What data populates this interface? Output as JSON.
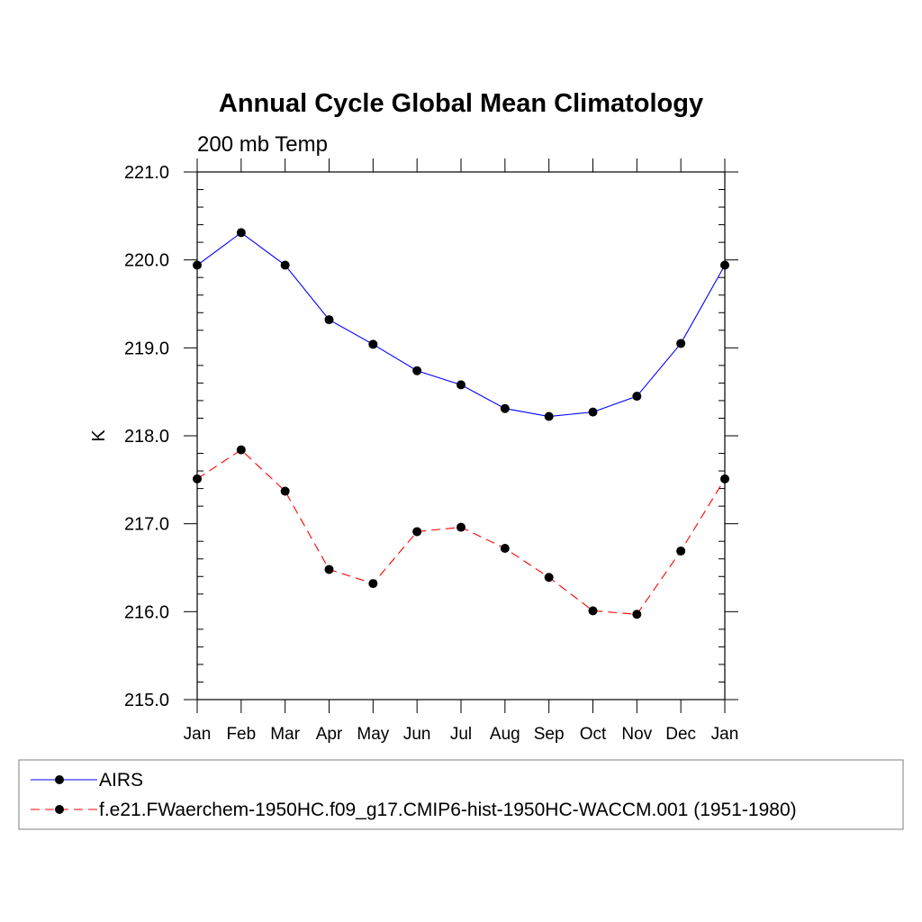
{
  "chart_data": {
    "type": "line",
    "title": "Annual Cycle Global Mean Climatology",
    "subtitle": "200 mb Temp",
    "xlabel": "",
    "ylabel": "K",
    "categories": [
      "Jan",
      "Feb",
      "Mar",
      "Apr",
      "May",
      "Jun",
      "Jul",
      "Aug",
      "Sep",
      "Oct",
      "Nov",
      "Dec",
      "Jan"
    ],
    "ylim": [
      215.0,
      221.0
    ],
    "yticks": [
      215.0,
      216.0,
      217.0,
      218.0,
      219.0,
      220.0,
      221.0
    ],
    "ytick_labels": [
      "215.0",
      "216.0",
      "217.0",
      "218.0",
      "219.0",
      "220.0",
      "221.0"
    ],
    "grid": false,
    "legend_position": "bottom",
    "series": [
      {
        "name": "AIRS",
        "color": "#0000ff",
        "line_style": "solid",
        "marker": "circle",
        "values": [
          219.94,
          220.31,
          219.94,
          219.32,
          219.04,
          218.74,
          218.58,
          218.31,
          218.22,
          218.27,
          218.45,
          219.05,
          219.94
        ]
      },
      {
        "name": "f.e21.FWaerchem-1950HC.f09_g17.CMIP6-hist-1950HC-WACCM.001 (1951-1980)",
        "color": "#ff0000",
        "line_style": "dashed",
        "marker": "circle",
        "values": [
          217.51,
          217.84,
          217.37,
          216.48,
          216.32,
          216.91,
          216.96,
          216.72,
          216.39,
          216.01,
          215.97,
          216.69,
          217.51
        ]
      }
    ]
  }
}
